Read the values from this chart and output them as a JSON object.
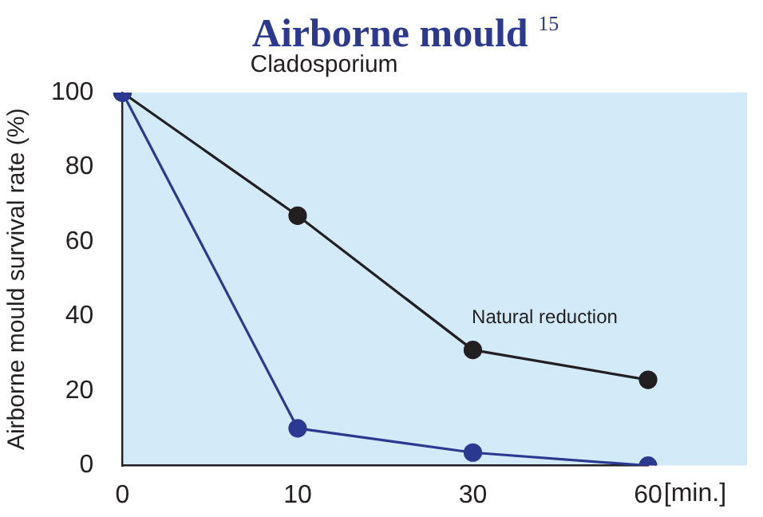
{
  "chart_data": {
    "type": "line",
    "title": "Airborne mould $^{15}$",
    "subtitle": "Cladosporium",
    "xlabel": "[min.]",
    "ylabel": "Airborne mould survival rate (%)",
    "categories": [
      "0",
      "10",
      "30",
      "60"
    ],
    "series": [
      {
        "name": "Natural reduction",
        "color": "#231f20",
        "values": [
          100,
          67,
          31,
          23
        ]
      },
      {
        "color": "#2b3990",
        "values": [
          100,
          10,
          3.5,
          0
        ]
      }
    ],
    "ylim": [
      0,
      100
    ],
    "yticks": [
      0,
      20,
      40,
      60,
      80,
      100
    ],
    "marker": "circle",
    "grid": false
  }
}
